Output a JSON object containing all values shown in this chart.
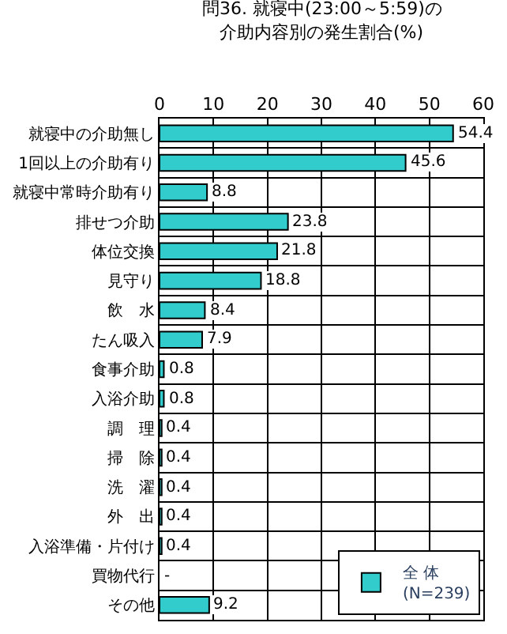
{
  "chart_data": {
    "type": "bar",
    "orientation": "horizontal",
    "title": "問36. 就寝中(23:00～5:59)の",
    "subtitle": "介助内容別の発生割合(%)",
    "categories": [
      "就寝中の介助無し",
      "1回以上の介助有り",
      "就寝中常時介助有り",
      "排せつ介助",
      "体位交換",
      "見守り",
      "飲　水",
      "たん吸入",
      "食事介助",
      "入浴介助",
      "調　理",
      "掃　除",
      "洗　濯",
      "外　出",
      "入浴準備・片付け",
      "買物代行",
      "その他"
    ],
    "series": [
      {
        "name": "全 体\n(N=239)",
        "color": "#33cccc",
        "values": [
          54.4,
          45.6,
          8.8,
          23.8,
          21.8,
          18.8,
          8.4,
          7.9,
          0.8,
          0.8,
          0.4,
          0.4,
          0.4,
          0.4,
          0.4,
          null,
          9.2
        ],
        "value_labels": [
          "54.4",
          "45.6",
          "8.8",
          "23.8",
          "21.8",
          "18.8",
          "8.4",
          "7.9",
          "0.8",
          "0.8",
          "0.4",
          "0.4",
          "0.4",
          "0.4",
          "0.4",
          "-",
          "9.2"
        ]
      }
    ],
    "xlim": [
      0,
      60
    ],
    "xticks": [
      0,
      10,
      20,
      30,
      40,
      50,
      60
    ],
    "grid": true,
    "legend": "bottom right"
  }
}
